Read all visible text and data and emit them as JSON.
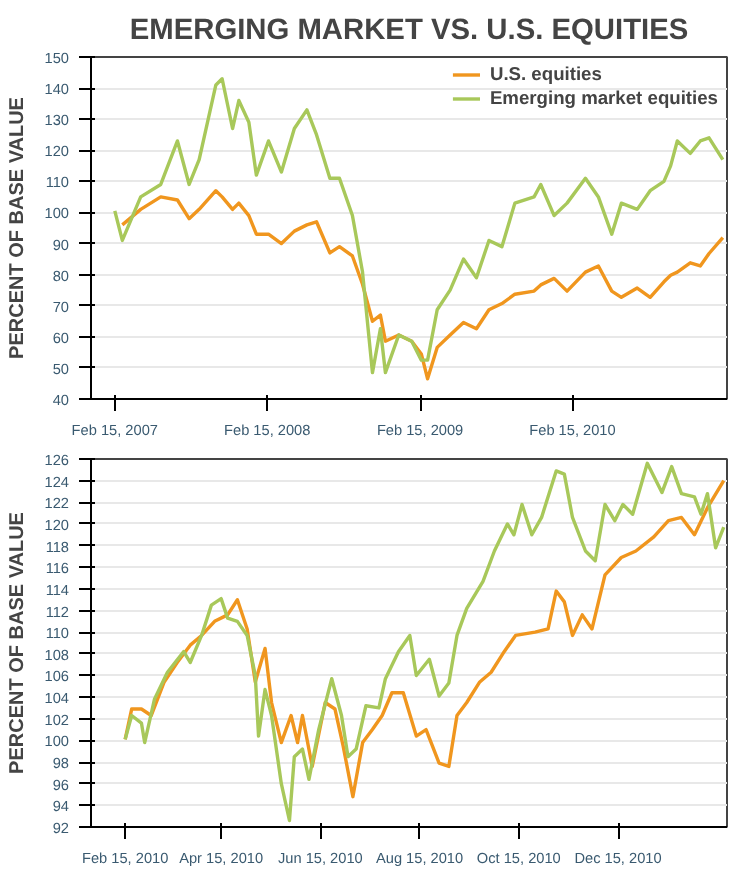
{
  "chart_data": [
    {
      "type": "line",
      "title": "EMERGING MARKET VS. U.S. EQUITIES",
      "ylabel": "PERCENT OF BASE VALUE",
      "xlim": [
        "2006-12-20",
        "2011-02-20"
      ],
      "ylim": [
        40,
        150
      ],
      "yticks": [
        40,
        50,
        60,
        70,
        80,
        90,
        100,
        110,
        120,
        130,
        140,
        150
      ],
      "xticks": [
        {
          "value": "2007-02-15",
          "label": "Feb 15, 2007"
        },
        {
          "value": "2008-02-15",
          "label": "Feb 15, 2008"
        },
        {
          "value": "2009-02-15",
          "label": "Feb 15, 2009"
        },
        {
          "value": "2010-02-15",
          "label": "Feb 15, 2010"
        }
      ],
      "grid": "y",
      "legend": "top right",
      "series": [
        {
          "name": "U.S. equities",
          "color": "#f0961e",
          "x": [
            "2007-03-05",
            "2007-04-18",
            "2007-06-05",
            "2007-07-15",
            "2007-08-12",
            "2007-09-05",
            "2007-10-15",
            "2007-10-30",
            "2007-11-24",
            "2007-12-09",
            "2008-01-02",
            "2008-01-20",
            "2008-02-18",
            "2008-03-20",
            "2008-04-20",
            "2008-05-20",
            "2008-06-12",
            "2008-07-14",
            "2008-08-06",
            "2008-09-06",
            "2008-09-30",
            "2008-10-24",
            "2008-11-12",
            "2008-11-24",
            "2008-12-26",
            "2009-01-26",
            "2009-02-18",
            "2009-03-05",
            "2009-03-28",
            "2009-04-28",
            "2009-05-30",
            "2009-06-30",
            "2009-07-30",
            "2009-08-30",
            "2009-09-30",
            "2009-11-15",
            "2009-12-01",
            "2010-01-02",
            "2010-02-02",
            "2010-03-18",
            "2010-04-18",
            "2010-05-20",
            "2010-06-12",
            "2010-07-20",
            "2010-08-20",
            "2010-09-22",
            "2010-10-08",
            "2010-10-24",
            "2010-11-24",
            "2010-12-18",
            "2011-01-08",
            "2011-02-10"
          ],
          "values": [
            96,
            101,
            105,
            104,
            98,
            101,
            107,
            105,
            101,
            103,
            99,
            93,
            93,
            90,
            94,
            96,
            97,
            87,
            89,
            86,
            77,
            65,
            67,
            58.6,
            60.6,
            58.6,
            54.5,
            46.5,
            56.6,
            60.6,
            64.6,
            62.6,
            68.7,
            70.7,
            73.7,
            74.7,
            76.7,
            78.8,
            74.7,
            80.8,
            82.8,
            74.7,
            72.7,
            75.7,
            72.7,
            77.7,
            79.8,
            80.8,
            83.8,
            82.8,
            86.8,
            91.9
          ]
        },
        {
          "name": "Emerging market equities",
          "color": "#a8c85a",
          "x": [
            "2007-02-15",
            "2007-03-05",
            "2007-04-18",
            "2007-06-05",
            "2007-07-15",
            "2007-08-12",
            "2007-09-05",
            "2007-10-15",
            "2007-10-30",
            "2007-11-24",
            "2007-12-09",
            "2008-01-02",
            "2008-01-20",
            "2008-02-18",
            "2008-03-20",
            "2008-04-20",
            "2008-05-20",
            "2008-06-12",
            "2008-07-14",
            "2008-08-06",
            "2008-09-06",
            "2008-09-30",
            "2008-10-24",
            "2008-11-12",
            "2008-11-24",
            "2008-12-26",
            "2009-01-26",
            "2009-02-18",
            "2009-03-05",
            "2009-03-28",
            "2009-04-28",
            "2009-05-30",
            "2009-06-30",
            "2009-07-30",
            "2009-08-30",
            "2009-09-30",
            "2009-11-15",
            "2009-12-01",
            "2010-01-02",
            "2010-02-02",
            "2010-03-18",
            "2010-04-18",
            "2010-05-20",
            "2010-06-12",
            "2010-07-20",
            "2010-08-20",
            "2010-09-22",
            "2010-10-08",
            "2010-10-24",
            "2010-11-24",
            "2010-12-18",
            "2011-01-08",
            "2011-02-10"
          ],
          "values": [
            100.5,
            91,
            105,
            109,
            123,
            109,
            117,
            141,
            143,
            127,
            136,
            129,
            112,
            123,
            113,
            127,
            133,
            125,
            111,
            111,
            99,
            81,
            48.5,
            62.6,
            48.5,
            60.6,
            58.6,
            52.5,
            52.5,
            68.7,
            75,
            85,
            79,
            91,
            89,
            103,
            105,
            109,
            99,
            103,
            111,
            105,
            93,
            103,
            101,
            107,
            110,
            115,
            123,
            119,
            123,
            124,
            117
          ]
        }
      ]
    },
    {
      "type": "line",
      "ylabel": "PERCENT OF BASE VALUE",
      "xlim": [
        "2010-01-25",
        "2011-02-20"
      ],
      "ylim": [
        92,
        126
      ],
      "yticks": [
        92,
        94,
        96,
        98,
        100,
        102,
        104,
        106,
        108,
        110,
        112,
        114,
        116,
        118,
        120,
        122,
        124,
        126
      ],
      "xticks": [
        {
          "value": "2010-02-15",
          "label": "Feb 15, 2010"
        },
        {
          "value": "2010-04-15",
          "label": "Apr 15, 2010"
        },
        {
          "value": "2010-06-15",
          "label": "Jun 15, 2010"
        },
        {
          "value": "2010-08-15",
          "label": "Aug 15, 2010"
        },
        {
          "value": "2010-10-15",
          "label": "Oct 15, 2010"
        },
        {
          "value": "2010-12-15",
          "label": "Dec 15, 2010"
        }
      ],
      "grid": "y",
      "series": [
        {
          "color": "#f0961e",
          "x": [
            "2010-02-15",
            "2010-02-19",
            "2010-02-25",
            "2010-03-03",
            "2010-03-11",
            "2010-03-19",
            "2010-03-27",
            "2010-04-03",
            "2010-04-11",
            "2010-04-19",
            "2010-04-25",
            "2010-05-01",
            "2010-05-06",
            "2010-05-12",
            "2010-05-16",
            "2010-05-22",
            "2010-05-28",
            "2010-06-01",
            "2010-06-04",
            "2010-06-10",
            "2010-06-18",
            "2010-06-24",
            "2010-06-29",
            "2010-07-05",
            "2010-07-11",
            "2010-07-17",
            "2010-07-23",
            "2010-07-29",
            "2010-08-05",
            "2010-08-13",
            "2010-08-19",
            "2010-08-27",
            "2010-09-02",
            "2010-09-07",
            "2010-09-13",
            "2010-09-21",
            "2010-09-28",
            "2010-10-06",
            "2010-10-13",
            "2010-10-25",
            "2010-11-02",
            "2010-11-07",
            "2010-11-12",
            "2010-11-17",
            "2010-11-23",
            "2010-11-29",
            "2010-12-07",
            "2010-12-17",
            "2010-12-26",
            "2011-01-06",
            "2011-01-15",
            "2011-01-23",
            "2011-01-31",
            "2011-02-08",
            "2011-02-18"
          ],
          "values": [
            100.1,
            102.9,
            102.9,
            102.3,
            105.4,
            107.2,
            108.8,
            109.7,
            111.0,
            111.6,
            113.0,
            110.3,
            105.4,
            108.5,
            103.5,
            99.8,
            102.3,
            99.8,
            102.3,
            97.6,
            103.5,
            102.9,
            99.5,
            94.8,
            99.8,
            101.0,
            102.3,
            104.4,
            104.4,
            100.4,
            101.0,
            97.9,
            97.6,
            102.3,
            103.5,
            105.4,
            106.3,
            108.2,
            109.7,
            110.0,
            110.3,
            113.8,
            112.8,
            109.7,
            111.6,
            110.3,
            115.3,
            116.9,
            117.5,
            118.8,
            120.3,
            120.6,
            119.0,
            121.5,
            124.0
          ]
        },
        {
          "color": "#a8c85a",
          "x": [
            "2010-02-15",
            "2010-02-19",
            "2010-02-25",
            "2010-02-27",
            "2010-03-05",
            "2010-03-13",
            "2010-03-23",
            "2010-03-27",
            "2010-04-03",
            "2010-04-09",
            "2010-04-15",
            "2010-04-19",
            "2010-04-25",
            "2010-05-01",
            "2010-05-06",
            "2010-05-08",
            "2010-05-12",
            "2010-05-16",
            "2010-05-22",
            "2010-05-27",
            "2010-05-30",
            "2010-06-04",
            "2010-06-08",
            "2010-06-14",
            "2010-06-22",
            "2010-06-28",
            "2010-07-02",
            "2010-07-07",
            "2010-07-13",
            "2010-07-21",
            "2010-07-25",
            "2010-08-02",
            "2010-08-09",
            "2010-08-13",
            "2010-08-21",
            "2010-08-27",
            "2010-09-02",
            "2010-09-07",
            "2010-09-13",
            "2010-09-23",
            "2010-09-30",
            "2010-10-08",
            "2010-10-12",
            "2010-10-17",
            "2010-10-23",
            "2010-10-29",
            "2010-11-07",
            "2010-11-12",
            "2010-11-17",
            "2010-11-25",
            "2010-12-01",
            "2010-12-07",
            "2010-12-13",
            "2010-12-18",
            "2010-12-24",
            "2011-01-02",
            "2011-01-11",
            "2011-01-17",
            "2011-01-23",
            "2011-01-31",
            "2011-02-04",
            "2011-02-08",
            "2011-02-13",
            "2011-02-18"
          ],
          "values": [
            100.1,
            102.3,
            101.6,
            99.8,
            103.8,
            106.3,
            108.2,
            107.2,
            109.7,
            112.5,
            113.1,
            111.3,
            111.0,
            109.7,
            106.0,
            100.4,
            104.7,
            102.3,
            96.0,
            92.6,
            98.5,
            99.2,
            96.4,
            101.0,
            105.7,
            102.3,
            98.5,
            99.2,
            103.2,
            103.0,
            105.7,
            108.2,
            109.7,
            106.0,
            107.5,
            104.1,
            105.3,
            109.7,
            112.2,
            114.7,
            117.5,
            120.0,
            119.0,
            121.8,
            119.0,
            120.6,
            124.9,
            124.6,
            120.6,
            117.5,
            116.6,
            121.8,
            120.3,
            121.8,
            120.9,
            125.6,
            122.9,
            125.3,
            122.8,
            122.5,
            120.9,
            122.8,
            117.8,
            119.7
          ]
        }
      ]
    }
  ]
}
